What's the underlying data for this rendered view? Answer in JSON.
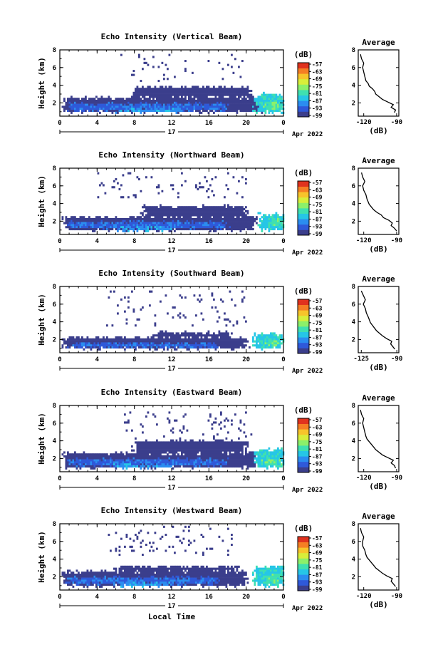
{
  "chart_data": [
    {
      "type": "heatmap",
      "title": "Echo Intensity (Vertical Beam)",
      "ylabel": "Height (km)",
      "xlabel": "",
      "x_ticks": [
        "0",
        "4",
        "8",
        "12",
        "16",
        "20",
        "0"
      ],
      "y_ticks": [
        "2",
        "4",
        "6",
        "8"
      ],
      "xlim": [
        0,
        24
      ],
      "ylim": [
        0.5,
        8
      ],
      "day_label": "17",
      "month_label": "Apr 2022",
      "colorbar": {
        "unit": "(dB)",
        "ticks": [
          "-57",
          "-63",
          "-69",
          "-75",
          "-81",
          "-87",
          "-93",
          "-99"
        ]
      },
      "average": {
        "title": "Average",
        "xlabel": "(dB)",
        "x_ticks": [
          "-120",
          "-90"
        ],
        "y_ticks": [
          "2",
          "4",
          "6",
          "8"
        ],
        "xlim": [
          -125,
          -88
        ],
        "ylim": [
          0.5,
          8
        ],
        "height_km": [
          0.9,
          1.2,
          1.5,
          1.8,
          2.1,
          2.4,
          2.7,
          3.0,
          3.3,
          3.6,
          3.9,
          4.2,
          4.5,
          5.0,
          5.5,
          6.0,
          6.5,
          7.0,
          7.5
        ],
        "avg_db": [
          -92,
          -91,
          -95,
          -93,
          -98,
          -103,
          -106,
          -109,
          -110,
          -112,
          -115,
          -116,
          -118,
          -119,
          -120,
          -121,
          -120,
          -122,
          -123
        ]
      },
      "echo_layers": [
        {
          "x0": 0.5,
          "x1": 22.0,
          "y0": 1.0,
          "y1": 2.6,
          "level": 0
        },
        {
          "x0": 8.0,
          "x1": 20.5,
          "y0": 2.6,
          "y1": 3.8,
          "level": 0
        },
        {
          "x0": 1.0,
          "x1": 18.0,
          "y0": 1.2,
          "y1": 1.9,
          "level": 1
        },
        {
          "x0": 6.0,
          "x1": 13.0,
          "y0": 1.0,
          "y1": 1.3,
          "level": 2
        },
        {
          "x0": 21.0,
          "x1": 24.0,
          "y0": 1.0,
          "y1": 3.0,
          "level": 3
        },
        {
          "x0": 22.0,
          "x1": 23.6,
          "y0": 1.3,
          "y1": 2.2,
          "level": 4
        }
      ],
      "sparse_echo": {
        "x0": 6.5,
        "x1": 20.0,
        "y0": 4.5,
        "y1": 7.5,
        "density": 0.05
      }
    },
    {
      "type": "heatmap",
      "title": "Echo Intensity (Northward Beam)",
      "ylabel": "Height (km)",
      "xlabel": "",
      "x_ticks": [
        "0",
        "4",
        "8",
        "12",
        "16",
        "20",
        "0"
      ],
      "y_ticks": [
        "2",
        "4",
        "6",
        "8"
      ],
      "xlim": [
        0,
        24
      ],
      "ylim": [
        0.5,
        8
      ],
      "day_label": "17",
      "month_label": "Apr 2022",
      "colorbar": {
        "unit": "(dB)",
        "ticks": [
          "-57",
          "-63",
          "-69",
          "-75",
          "-81",
          "-87",
          "-93",
          "-99"
        ]
      },
      "average": {
        "title": "Average",
        "xlabel": "(dB)",
        "x_ticks": [
          "-120",
          "-90"
        ],
        "y_ticks": [
          "2",
          "4",
          "6",
          "8"
        ],
        "xlim": [
          -125,
          -88
        ],
        "ylim": [
          0.5,
          8
        ],
        "height_km": [
          0.9,
          1.2,
          1.5,
          1.8,
          2.1,
          2.4,
          2.7,
          3.0,
          3.3,
          3.6,
          3.9,
          4.2,
          4.5,
          5.0,
          5.5,
          6.0,
          6.5,
          7.0,
          7.5
        ],
        "avg_db": [
          -90,
          -92,
          -95,
          -94,
          -97,
          -102,
          -104,
          -108,
          -111,
          -113,
          -115,
          -116,
          -117,
          -118,
          -120,
          -121,
          -119,
          -121,
          -122
        ]
      },
      "echo_layers": [
        {
          "x0": 0.5,
          "x1": 21.0,
          "y0": 1.0,
          "y1": 2.5,
          "level": 0
        },
        {
          "x0": 9.0,
          "x1": 20.0,
          "y0": 2.5,
          "y1": 3.7,
          "level": 0
        },
        {
          "x0": 1.0,
          "x1": 18.0,
          "y0": 1.2,
          "y1": 1.9,
          "level": 1
        },
        {
          "x0": 6.0,
          "x1": 12.0,
          "y0": 1.0,
          "y1": 1.3,
          "level": 2
        },
        {
          "x0": 21.5,
          "x1": 24.0,
          "y0": 1.0,
          "y1": 2.8,
          "level": 3
        },
        {
          "x0": 22.5,
          "x1": 23.8,
          "y0": 1.4,
          "y1": 2.2,
          "level": 4
        }
      ],
      "sparse_echo": {
        "x0": 4.0,
        "x1": 20.0,
        "y0": 4.5,
        "y1": 7.6,
        "density": 0.06
      }
    },
    {
      "type": "heatmap",
      "title": "Echo Intensity (Southward Beam)",
      "ylabel": "Height (km)",
      "xlabel": "",
      "x_ticks": [
        "0",
        "4",
        "8",
        "12",
        "16",
        "20",
        "0"
      ],
      "y_ticks": [
        "2",
        "4",
        "6",
        "8"
      ],
      "xlim": [
        0,
        24
      ],
      "ylim": [
        0.5,
        8
      ],
      "day_label": "17",
      "month_label": "Apr 2022",
      "colorbar": {
        "unit": "(dB)",
        "ticks": [
          "-57",
          "-63",
          "-69",
          "-75",
          "-81",
          "-87",
          "-93",
          "-99"
        ]
      },
      "average": {
        "title": "Average",
        "xlabel": "(dB)",
        "x_ticks": [
          "-125",
          "-90"
        ],
        "y_ticks": [
          "2",
          "4",
          "6",
          "8"
        ],
        "xlim": [
          -128,
          -88
        ],
        "ylim": [
          0.5,
          8
        ],
        "height_km": [
          0.9,
          1.2,
          1.5,
          1.8,
          2.1,
          2.4,
          2.7,
          3.0,
          3.3,
          3.6,
          3.9,
          4.2,
          4.5,
          5.0,
          5.5,
          6.0,
          6.5,
          7.0,
          7.5
        ],
        "avg_db": [
          -92,
          -94,
          -96,
          -95,
          -100,
          -104,
          -107,
          -110,
          -112,
          -114,
          -116,
          -117,
          -118,
          -120,
          -121,
          -123,
          -121,
          -123,
          -125
        ]
      },
      "echo_layers": [
        {
          "x0": 0.5,
          "x1": 20.0,
          "y0": 1.0,
          "y1": 2.2,
          "level": 0
        },
        {
          "x0": 10.0,
          "x1": 18.5,
          "y0": 2.2,
          "y1": 2.8,
          "level": 0
        },
        {
          "x0": 1.0,
          "x1": 17.0,
          "y0": 1.1,
          "y1": 1.6,
          "level": 1
        },
        {
          "x0": 21.0,
          "x1": 24.0,
          "y0": 1.0,
          "y1": 2.6,
          "level": 3
        },
        {
          "x0": 22.0,
          "x1": 23.5,
          "y0": 1.3,
          "y1": 2.0,
          "level": 4
        }
      ],
      "sparse_echo": {
        "x0": 5.0,
        "x1": 20.0,
        "y0": 3.5,
        "y1": 7.5,
        "density": 0.04
      }
    },
    {
      "type": "heatmap",
      "title": "Echo Intensity (Eastward Beam)",
      "ylabel": "Height (km)",
      "xlabel": "",
      "x_ticks": [
        "0",
        "4",
        "8",
        "12",
        "16",
        "20",
        "0"
      ],
      "y_ticks": [
        "2",
        "4",
        "6",
        "8"
      ],
      "xlim": [
        0,
        24
      ],
      "ylim": [
        0.5,
        8
      ],
      "day_label": "17",
      "month_label": "Apr 2022",
      "colorbar": {
        "unit": "(dB)",
        "ticks": [
          "-57",
          "-63",
          "-69",
          "-75",
          "-81",
          "-87",
          "-93",
          "-99"
        ]
      },
      "average": {
        "title": "Average",
        "xlabel": "(dB)",
        "x_ticks": [
          "-120",
          "-90"
        ],
        "y_ticks": [
          "2",
          "4",
          "6",
          "8"
        ],
        "xlim": [
          -125,
          -88
        ],
        "ylim": [
          0.5,
          8
        ],
        "height_km": [
          0.9,
          1.2,
          1.5,
          1.8,
          2.1,
          2.4,
          2.7,
          3.0,
          3.3,
          3.6,
          3.9,
          4.2,
          4.5,
          5.0,
          5.5,
          6.0,
          6.5,
          7.0,
          7.5
        ],
        "avg_db": [
          -91,
          -92,
          -95,
          -93,
          -98,
          -103,
          -106,
          -109,
          -111,
          -113,
          -115,
          -117,
          -118,
          -119,
          -120,
          -121,
          -120,
          -122,
          -123
        ]
      },
      "echo_layers": [
        {
          "x0": 0.5,
          "x1": 21.0,
          "y0": 1.0,
          "y1": 2.6,
          "level": 0
        },
        {
          "x0": 8.0,
          "x1": 20.0,
          "y0": 2.6,
          "y1": 4.0,
          "level": 0
        },
        {
          "x0": 1.0,
          "x1": 18.0,
          "y0": 1.2,
          "y1": 1.9,
          "level": 1
        },
        {
          "x0": 6.0,
          "x1": 12.0,
          "y0": 1.0,
          "y1": 1.3,
          "level": 2
        },
        {
          "x0": 21.0,
          "x1": 24.0,
          "y0": 1.0,
          "y1": 3.0,
          "level": 3
        },
        {
          "x0": 22.0,
          "x1": 23.6,
          "y0": 1.3,
          "y1": 2.0,
          "level": 4
        }
      ],
      "sparse_echo": {
        "x0": 6.0,
        "x1": 21.0,
        "y0": 4.2,
        "y1": 7.6,
        "density": 0.05
      }
    },
    {
      "type": "heatmap",
      "title": "Echo Intensity (Westward Beam)",
      "ylabel": "Height (km)",
      "xlabel": "Local Time",
      "x_ticks": [
        "0",
        "4",
        "8",
        "12",
        "16",
        "20",
        "0"
      ],
      "y_ticks": [
        "2",
        "4",
        "6",
        "8"
      ],
      "xlim": [
        0,
        24
      ],
      "ylim": [
        0.5,
        8
      ],
      "day_label": "17",
      "month_label": "Apr 2022",
      "colorbar": {
        "unit": "(dB)",
        "ticks": [
          "-57",
          "-63",
          "-69",
          "-75",
          "-81",
          "-87",
          "-93",
          "-99"
        ]
      },
      "average": {
        "title": "Average",
        "xlabel": "(dB)",
        "x_ticks": [
          "-120",
          "-90"
        ],
        "y_ticks": [
          "2",
          "4",
          "6",
          "8"
        ],
        "xlim": [
          -125,
          -88
        ],
        "ylim": [
          0.5,
          8
        ],
        "height_km": [
          0.9,
          1.2,
          1.5,
          1.8,
          2.1,
          2.4,
          2.7,
          3.0,
          3.3,
          3.6,
          3.9,
          4.2,
          4.5,
          5.0,
          5.5,
          6.0,
          6.5,
          7.0,
          7.5
        ],
        "avg_db": [
          -91,
          -93,
          -95,
          -94,
          -99,
          -103,
          -106,
          -109,
          -111,
          -113,
          -115,
          -117,
          -118,
          -119,
          -121,
          -121,
          -120,
          -122,
          -123
        ]
      },
      "echo_layers": [
        {
          "x0": 0.5,
          "x1": 20.0,
          "y0": 1.0,
          "y1": 2.6,
          "level": 0
        },
        {
          "x0": 6.0,
          "x1": 19.0,
          "y0": 2.6,
          "y1": 3.2,
          "level": 0
        },
        {
          "x0": 1.0,
          "x1": 17.0,
          "y0": 1.2,
          "y1": 1.9,
          "level": 1
        },
        {
          "x0": 6.0,
          "x1": 12.0,
          "y0": 1.0,
          "y1": 1.3,
          "level": 2
        },
        {
          "x0": 21.0,
          "x1": 24.0,
          "y0": 1.0,
          "y1": 3.2,
          "level": 3
        },
        {
          "x0": 22.0,
          "x1": 23.6,
          "y0": 1.3,
          "y1": 2.2,
          "level": 4
        }
      ],
      "sparse_echo": {
        "x0": 5.0,
        "x1": 19.0,
        "y0": 4.5,
        "y1": 7.8,
        "density": 0.05
      }
    }
  ],
  "colors": {
    "scale": [
      "#3b3e8c",
      "#2f59d9",
      "#2b8df0",
      "#26c6e6",
      "#3fe0b0",
      "#8cf06a",
      "#d8ee3a",
      "#f7c42b",
      "#f57e24",
      "#e0321e"
    ],
    "background": "#ffffff",
    "axis": "#000000"
  }
}
